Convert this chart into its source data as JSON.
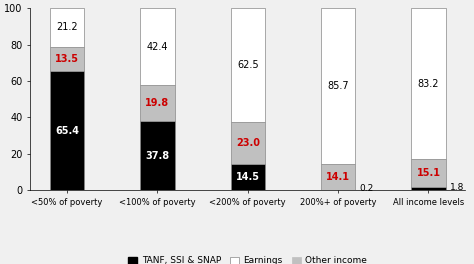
{
  "categories": [
    "<50% of poverty",
    "<100% of poverty",
    "<200% of poverty",
    "200%+ of poverty",
    "All income levels"
  ],
  "tanf_ssi_snap": [
    65.4,
    37.8,
    14.5,
    0.2,
    1.8
  ],
  "earnings": [
    21.2,
    42.4,
    62.5,
    85.7,
    83.2
  ],
  "other_income": [
    13.5,
    19.8,
    23.0,
    14.1,
    15.1
  ],
  "tanf_color": "#000000",
  "earnings_color": "#ffffff",
  "other_color": "#c0c0c0",
  "tanf_label_color": "#ffffff",
  "other_label_color": "#cc0000",
  "earnings_label_color": "#000000",
  "bar_edge_color": "#888888",
  "background_color": "#f0f0f0",
  "ylim": [
    0,
    100
  ],
  "yticks": [
    0,
    20,
    40,
    60,
    80,
    100
  ],
  "legend_labels": [
    "TANF, SSI & SNAP",
    "Earnings",
    "Other income"
  ],
  "figsize": [
    4.74,
    2.64
  ],
  "dpi": 100,
  "bar_width": 0.38
}
